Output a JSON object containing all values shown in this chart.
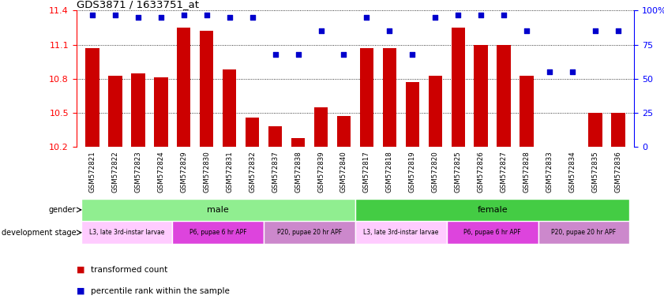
{
  "title": "GDS3871 / 1633751_at",
  "samples": [
    "GSM572821",
    "GSM572822",
    "GSM572823",
    "GSM572824",
    "GSM572829",
    "GSM572830",
    "GSM572831",
    "GSM572832",
    "GSM572837",
    "GSM572838",
    "GSM572839",
    "GSM572840",
    "GSM572817",
    "GSM572818",
    "GSM572819",
    "GSM572820",
    "GSM572825",
    "GSM572826",
    "GSM572827",
    "GSM572828",
    "GSM572833",
    "GSM572834",
    "GSM572835",
    "GSM572836"
  ],
  "bar_values": [
    11.07,
    10.83,
    10.85,
    10.81,
    11.25,
    11.22,
    10.88,
    10.46,
    10.38,
    10.28,
    10.55,
    10.47,
    11.07,
    11.07,
    10.77,
    10.83,
    11.25,
    11.1,
    11.1,
    10.83,
    10.18,
    10.18,
    10.5,
    10.5
  ],
  "percentile_values": [
    97,
    97,
    95,
    95,
    97,
    97,
    95,
    95,
    68,
    68,
    85,
    68,
    95,
    85,
    68,
    95,
    97,
    97,
    97,
    85,
    55,
    55,
    85,
    85
  ],
  "ymin": 10.2,
  "ymax": 11.4,
  "yticks": [
    10.2,
    10.5,
    10.8,
    11.1,
    11.4
  ],
  "right_yticks": [
    0,
    25,
    50,
    75,
    100
  ],
  "bar_color": "#cc0000",
  "dot_color": "#0000cc",
  "gender_male_color": "#90ee90",
  "gender_female_color": "#44cc44",
  "stage_l3_color": "#ffccff",
  "stage_p6_color": "#dd44dd",
  "stage_p20_color": "#cc88cc",
  "gender_row_label": "gender",
  "stage_row_label": "development stage",
  "legend_bar": "transformed count",
  "legend_dot": "percentile rank within the sample",
  "gender_groups": [
    {
      "label": "male",
      "start": 0,
      "end": 11
    },
    {
      "label": "female",
      "start": 12,
      "end": 23
    }
  ],
  "stage_groups": [
    {
      "label": "L3, late 3rd-instar larvae",
      "start": 0,
      "end": 3,
      "color": "#ffccff"
    },
    {
      "label": "P6, pupae 6 hr APF",
      "start": 4,
      "end": 7,
      "color": "#dd44dd"
    },
    {
      "label": "P20, pupae 20 hr APF",
      "start": 8,
      "end": 11,
      "color": "#cc88cc"
    },
    {
      "label": "L3, late 3rd-instar larvae",
      "start": 12,
      "end": 15,
      "color": "#ffccff"
    },
    {
      "label": "P6, pupae 6 hr APF",
      "start": 16,
      "end": 19,
      "color": "#dd44dd"
    },
    {
      "label": "P20, pupae 20 hr APF",
      "start": 20,
      "end": 23,
      "color": "#cc88cc"
    }
  ]
}
